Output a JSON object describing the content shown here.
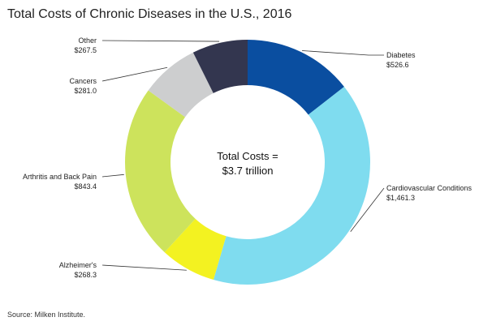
{
  "chart_data": {
    "type": "pie",
    "title": "Total Costs of Chronic Diseases in the U.S., 2016",
    "center_label": [
      "Total Costs =",
      "$3.7 trillion"
    ],
    "source": "Source: Milken Institute.",
    "slices": [
      {
        "name": "Diabetes",
        "value": 526.6,
        "value_label": "$526.6",
        "color": "#0a4ea0"
      },
      {
        "name": "Cardiovascular Conditions",
        "value": 1461.3,
        "value_label": "$1,461.3",
        "color": "#7fdcef"
      },
      {
        "name": "Alzheimer's",
        "value": 268.3,
        "value_label": "$268.3",
        "color": "#f3f221"
      },
      {
        "name": "Arthritis and Back Pain",
        "value": 843.4,
        "value_label": "$843.4",
        "color": "#cde35c"
      },
      {
        "name": "Cancers",
        "value": 281.0,
        "value_label": "$281.0",
        "color": "#cdcecf"
      },
      {
        "name": "Other",
        "value": 267.5,
        "value_label": "$267.5",
        "color": "#33364f"
      }
    ]
  }
}
